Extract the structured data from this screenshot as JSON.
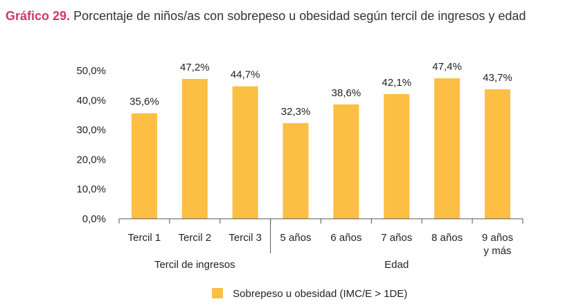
{
  "title": {
    "prefix": "Gráfico 29.",
    "text": "Porcentaje de niños/as con sobrepeso u obesidad según tercil de ingresos y edad"
  },
  "colors": {
    "bar": "#fcbf44",
    "title_prefix": "#d6336c",
    "axis": "#555555"
  },
  "chart_data": {
    "type": "bar",
    "title": "Porcentaje de niños/as con sobrepeso u obesidad según tercil de ingresos y edad",
    "categories": [
      "Tercil 1",
      "Tercil 2",
      "Tercil 3",
      "5 años",
      "6 años",
      "7 años",
      "8 años",
      "9 años y más"
    ],
    "category_lines": [
      [
        "Tercil 1"
      ],
      [
        "Tercil 2"
      ],
      [
        "Tercil 3"
      ],
      [
        "5 años"
      ],
      [
        "6 años"
      ],
      [
        "7 años"
      ],
      [
        "8 años"
      ],
      [
        "9 años",
        "y más"
      ]
    ],
    "groups": [
      {
        "label": "Tercil de ingresos",
        "categories": [
          "Tercil 1",
          "Tercil 2",
          "Tercil 3"
        ]
      },
      {
        "label": "Edad",
        "categories": [
          "5 años",
          "6 años",
          "7 años",
          "8 años",
          "9 años y más"
        ]
      }
    ],
    "series": [
      {
        "name": "Sobrepeso u obesidad (IMC/E > 1DE)",
        "values": [
          35.6,
          47.2,
          44.7,
          32.3,
          38.6,
          42.1,
          47.4,
          43.7
        ]
      }
    ],
    "data_labels": [
      "35,6%",
      "47,2%",
      "44,7%",
      "32,3%",
      "38,6%",
      "42,1%",
      "47,4%",
      "43,7%"
    ],
    "yticks": [
      0,
      10,
      20,
      30,
      40,
      50
    ],
    "ytick_labels": [
      "0,0%",
      "10,0%",
      "20,0%",
      "30,0%",
      "40,0%",
      "50,0%"
    ],
    "ylim": [
      0,
      50
    ],
    "grid": false,
    "legend_position": "bottom-center"
  }
}
